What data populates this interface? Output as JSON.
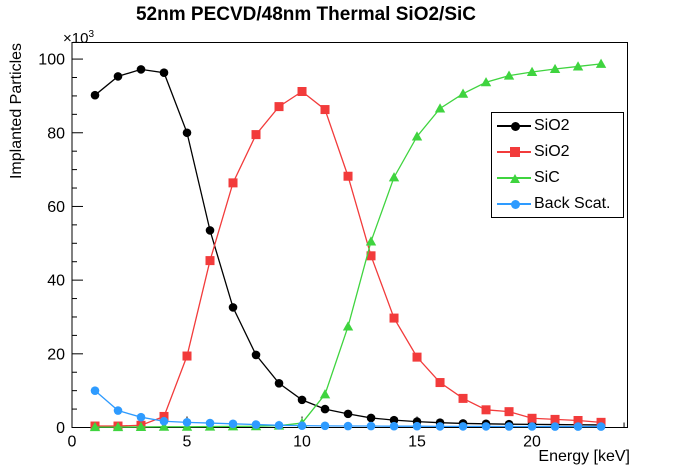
{
  "chart_data": {
    "type": "line",
    "title": "52nm PECVD/48nm Thermal SiO2/SiC",
    "xlabel": "Energy [keV]",
    "ylabel": "Implanted Particles",
    "y_multiplier": "×10",
    "y_exponent": "3",
    "xlim": [
      0,
      24.15
    ],
    "ylim": [
      0,
      104.5
    ],
    "grid": false,
    "legend_position": "middle-right",
    "x_major_ticks": [
      0,
      5,
      10,
      15,
      20
    ],
    "x_tick_labels": [
      "0",
      "5",
      "10",
      "15",
      "20"
    ],
    "x_minor_step": 1,
    "y_major_ticks": [
      0,
      20,
      40,
      60,
      80,
      100
    ],
    "y_tick_labels": [
      "0",
      "20",
      "40",
      "60",
      "80",
      "100"
    ],
    "y_minor_step": 5,
    "x": [
      1,
      2,
      3,
      4,
      5,
      6,
      7,
      8,
      9,
      10,
      11,
      12,
      13,
      14,
      15,
      16,
      17,
      18,
      19,
      20,
      21,
      22,
      23
    ],
    "series": [
      {
        "name": "SiO2",
        "marker": "circle",
        "color": "#000000",
        "values": [
          90.2,
          95.3,
          97.2,
          96.3,
          80.0,
          53.5,
          32.6,
          19.7,
          12.0,
          7.5,
          5.0,
          3.7,
          2.6,
          2.0,
          1.6,
          1.3,
          1.1,
          1.0,
          0.9,
          0.85,
          0.8,
          0.75,
          0.7
        ]
      },
      {
        "name": "SiO2",
        "marker": "square",
        "color": "#f23b3b",
        "values": [
          0.4,
          0.4,
          0.6,
          3.0,
          19.4,
          45.3,
          66.4,
          79.5,
          87.1,
          91.2,
          86.3,
          68.2,
          46.6,
          29.7,
          19.1,
          12.2,
          7.9,
          4.8,
          4.3,
          2.5,
          2.2,
          1.9,
          1.4
        ]
      },
      {
        "name": "SiC",
        "marker": "triangle",
        "color": "#3fd43f",
        "values": [
          0.1,
          0.1,
          0.15,
          0.2,
          0.2,
          0.25,
          0.3,
          0.35,
          0.5,
          1.2,
          9.0,
          27.4,
          50.5,
          67.9,
          79.0,
          86.6,
          90.6,
          93.7,
          95.5,
          96.5,
          97.3,
          98.0,
          98.7
        ]
      },
      {
        "name": "Back Scat.",
        "marker": "circle",
        "color": "#2e9bff",
        "values": [
          10.0,
          4.6,
          2.8,
          1.7,
          1.4,
          1.2,
          1.0,
          0.8,
          0.6,
          0.5,
          0.45,
          0.4,
          0.4,
          0.35,
          0.35,
          0.3,
          0.3,
          0.3,
          0.28,
          0.27,
          0.26,
          0.25,
          0.25
        ]
      }
    ]
  }
}
